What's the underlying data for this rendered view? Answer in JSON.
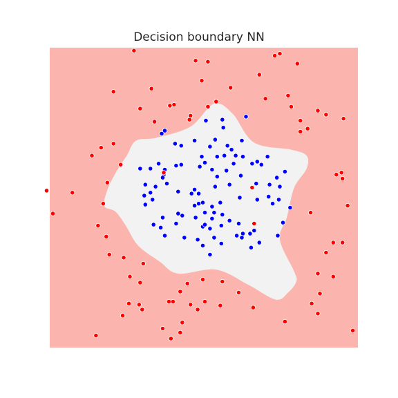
{
  "chart_data": {
    "type": "scatter",
    "title": "Decision boundary NN",
    "xlabel": "",
    "ylabel": "",
    "xlim": [
      -1.5,
      1.5
    ],
    "ylim": [
      -1.5,
      1.5
    ],
    "grid": false,
    "axes_visible": false,
    "background_region_color": "#fbb4ae",
    "decision_region_color": "#f2f2f2",
    "decision_boundary": [
      [
        -0.46,
        0.6
      ],
      [
        -0.13,
        0.71
      ],
      [
        0.1,
        0.94
      ],
      [
        0.28,
        0.84
      ],
      [
        0.49,
        0.55
      ],
      [
        0.85,
        0.48
      ],
      [
        1.0,
        0.42
      ],
      [
        1.0,
        0.29
      ],
      [
        0.88,
        0.1
      ],
      [
        0.81,
        -0.19
      ],
      [
        0.74,
        -0.42
      ],
      [
        0.88,
        -0.74
      ],
      [
        0.9,
        -0.84
      ],
      [
        0.82,
        -0.95
      ],
      [
        0.7,
        -1.02
      ],
      [
        0.43,
        -0.87
      ],
      [
        0.12,
        -0.72
      ],
      [
        -0.25,
        -0.76
      ],
      [
        -0.43,
        -0.64
      ],
      [
        -0.64,
        -0.48
      ],
      [
        -0.76,
        -0.28
      ],
      [
        -0.86,
        -0.14
      ],
      [
        -0.97,
        -0.08
      ],
      [
        -0.93,
        0.1
      ],
      [
        -0.84,
        0.28
      ],
      [
        -0.75,
        0.42
      ],
      [
        -0.66,
        0.57
      ]
    ],
    "series": [
      {
        "color": "#0000ff",
        "points": [
          [
            0.02,
            0.77
          ],
          [
            0.18,
            0.78
          ],
          [
            0.41,
            0.81
          ],
          [
            -0.41,
            0.64
          ],
          [
            -0.38,
            0.67
          ],
          [
            0.19,
            0.7
          ],
          [
            -0.28,
            0.54
          ],
          [
            -0.22,
            0.52
          ],
          [
            0.37,
            0.57
          ],
          [
            0.11,
            0.58
          ],
          [
            -0.09,
            0.57
          ],
          [
            0.06,
            0.51
          ],
          [
            0.23,
            0.52
          ],
          [
            0.31,
            0.42
          ],
          [
            0.2,
            0.42
          ],
          [
            0.27,
            0.48
          ],
          [
            -0.02,
            0.41
          ],
          [
            0.13,
            0.41
          ],
          [
            0.38,
            0.41
          ],
          [
            0.01,
            0.35
          ],
          [
            -0.44,
            0.34
          ],
          [
            -0.27,
            0.32
          ],
          [
            -0.22,
            0.33
          ],
          [
            0.29,
            0.34
          ],
          [
            0.47,
            0.34
          ],
          [
            0.62,
            0.41
          ],
          [
            0.56,
            0.33
          ],
          [
            0.52,
            0.36
          ],
          [
            -0.62,
            0.29
          ],
          [
            -0.52,
            0.29
          ],
          [
            -0.39,
            0.23
          ],
          [
            -0.38,
            0.28
          ],
          [
            -0.4,
            0.2
          ],
          [
            -0.04,
            0.31
          ],
          [
            0.08,
            0.28
          ],
          [
            0.22,
            0.27
          ],
          [
            0.36,
            0.22
          ],
          [
            0.13,
            0.21
          ],
          [
            -0.36,
            0.14
          ],
          [
            -0.47,
            0.11
          ],
          [
            -0.09,
            0.08
          ],
          [
            0.25,
            0.13
          ],
          [
            0.51,
            0.14
          ],
          [
            0.71,
            0.2
          ],
          [
            0.79,
            0.26
          ],
          [
            0.64,
            0.13
          ],
          [
            0.74,
            0.11
          ],
          [
            -0.57,
            0.13
          ],
          [
            -0.58,
            0.02
          ],
          [
            -0.52,
            0.05
          ],
          [
            -0.25,
            0.06
          ],
          [
            -0.12,
            0.04
          ],
          [
            -0.05,
            0.04
          ],
          [
            0.11,
            0.11
          ],
          [
            -0.5,
            -0.02
          ],
          [
            -0.57,
            -0.07
          ],
          [
            -0.09,
            -0.08
          ],
          [
            -0.05,
            -0.06
          ],
          [
            -0.01,
            -0.05
          ],
          [
            0.16,
            -0.05
          ],
          [
            0.08,
            -0.09
          ],
          [
            0.35,
            0.0
          ],
          [
            0.52,
            -0.02
          ],
          [
            0.63,
            0.01
          ],
          [
            0.67,
            -0.06
          ],
          [
            0.73,
            -0.02
          ],
          [
            -0.08,
            -0.2
          ],
          [
            -0.25,
            -0.16
          ],
          [
            -0.4,
            -0.2
          ],
          [
            -0.21,
            -0.18
          ],
          [
            0.01,
            -0.15
          ],
          [
            0.1,
            -0.15
          ],
          [
            0.18,
            -0.17
          ],
          [
            0.08,
            -0.21
          ],
          [
            0.25,
            -0.23
          ],
          [
            0.84,
            -0.1
          ],
          [
            -0.49,
            -0.27
          ],
          [
            -0.42,
            -0.3
          ],
          [
            -0.27,
            -0.26
          ],
          [
            -0.01,
            -0.29
          ],
          [
            0.01,
            -0.27
          ],
          [
            0.06,
            -0.31
          ],
          [
            0.17,
            -0.28
          ],
          [
            0.34,
            -0.26
          ],
          [
            0.38,
            -0.36
          ],
          [
            0.45,
            -0.36
          ],
          [
            0.77,
            -0.25
          ],
          [
            0.49,
            -0.33
          ],
          [
            0.54,
            -0.45
          ],
          [
            0.46,
            -0.5
          ],
          [
            0.72,
            -0.38
          ],
          [
            -0.38,
            -0.38
          ],
          [
            -0.19,
            -0.4
          ],
          [
            -0.06,
            -0.42
          ],
          [
            0.1,
            -0.4
          ],
          [
            0.32,
            -0.38
          ],
          [
            0.37,
            -0.4
          ],
          [
            0.17,
            -0.46
          ],
          [
            -0.01,
            -0.48
          ],
          [
            0.06,
            -0.57
          ]
        ]
      },
      {
        "color": "#ff0000",
        "points": [
          [
            -0.68,
            1.47
          ],
          [
            -0.08,
            1.37
          ],
          [
            0.04,
            1.36
          ],
          [
            0.69,
            1.42
          ],
          [
            0.74,
            1.44
          ],
          [
            0.91,
            1.34
          ],
          [
            -0.02,
            1.17
          ],
          [
            0.54,
            1.23
          ],
          [
            -0.51,
            1.09
          ],
          [
            -0.88,
            1.06
          ],
          [
            0.26,
            1.1
          ],
          [
            -0.29,
            0.93
          ],
          [
            0.12,
            0.96
          ],
          [
            -0.33,
            0.92
          ],
          [
            0.6,
            0.99
          ],
          [
            0.82,
            1.02
          ],
          [
            0.04,
            0.91
          ],
          [
            -0.62,
            0.89
          ],
          [
            0.85,
            0.91
          ],
          [
            1.11,
            0.87
          ],
          [
            1.19,
            0.83
          ],
          [
            -0.48,
            0.76
          ],
          [
            -0.14,
            0.78
          ],
          [
            1.36,
            0.79
          ],
          [
            -0.13,
            0.82
          ],
          [
            0.94,
            0.66
          ],
          [
            1.01,
            0.69
          ],
          [
            0.94,
            0.77
          ],
          [
            -0.88,
            0.54
          ],
          [
            -1.0,
            0.5
          ],
          [
            -1.09,
            0.42
          ],
          [
            -0.81,
            0.33
          ],
          [
            -0.39,
            0.25
          ],
          [
            0.47,
            0.1
          ],
          [
            1.29,
            0.23
          ],
          [
            1.4,
            -0.08
          ],
          [
            1.04,
            -0.15
          ],
          [
            1.34,
            0.25
          ],
          [
            1.35,
            0.19
          ],
          [
            -0.94,
            0.15
          ],
          [
            -1.28,
            0.05
          ],
          [
            -1.53,
            0.07
          ],
          [
            -1.47,
            -0.16
          ],
          [
            -0.98,
            -0.06
          ],
          [
            -1.03,
            -0.28
          ],
          [
            -0.95,
            -0.39
          ],
          [
            0.49,
            -0.26
          ],
          [
            -0.78,
            -0.6
          ],
          [
            -0.59,
            -0.66
          ],
          [
            1.26,
            -0.45
          ],
          [
            1.35,
            -0.45
          ],
          [
            1.19,
            -0.55
          ],
          [
            -0.92,
            -0.57
          ],
          [
            -0.72,
            -0.79
          ],
          [
            -0.62,
            -0.85
          ],
          [
            -0.16,
            -0.86
          ],
          [
            -0.01,
            -0.82
          ],
          [
            -0.23,
            -0.94
          ],
          [
            0.18,
            -0.84
          ],
          [
            0.34,
            -0.95
          ],
          [
            1.11,
            -0.76
          ],
          [
            1.26,
            -0.79
          ],
          [
            1.13,
            -0.96
          ],
          [
            -0.3,
            -1.04
          ],
          [
            -0.13,
            -1.07
          ],
          [
            0.16,
            -1.08
          ],
          [
            -0.63,
            -1.07
          ],
          [
            -0.34,
            -1.04
          ],
          [
            0.01,
            -1.04
          ],
          [
            1.05,
            -1.06
          ],
          [
            -0.79,
            -1.18
          ],
          [
            -0.73,
            -1.06
          ],
          [
            -0.6,
            -1.12
          ],
          [
            -0.06,
            -1.12
          ],
          [
            0.48,
            -1.1
          ],
          [
            0.79,
            -1.24
          ],
          [
            -0.21,
            -1.25
          ],
          [
            -0.4,
            -1.31
          ],
          [
            1.11,
            -1.16
          ],
          [
            1.45,
            -1.33
          ],
          [
            -0.23,
            -1.35
          ],
          [
            -1.05,
            -1.38
          ],
          [
            -0.32,
            -1.41
          ]
        ]
      }
    ]
  }
}
